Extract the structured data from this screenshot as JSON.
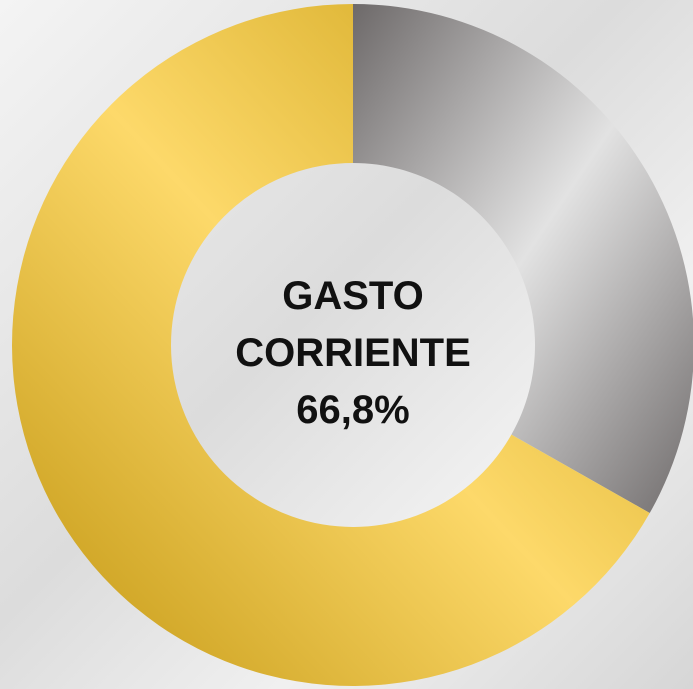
{
  "chart_data": {
    "type": "donut",
    "categories": [
      null,
      "GASTO CORRIENTE"
    ],
    "values": [
      33.2,
      66.8
    ],
    "value_labels": [
      null,
      "66,8%"
    ],
    "colors": [
      "#8a8787",
      "#e0b53a"
    ]
  }
}
